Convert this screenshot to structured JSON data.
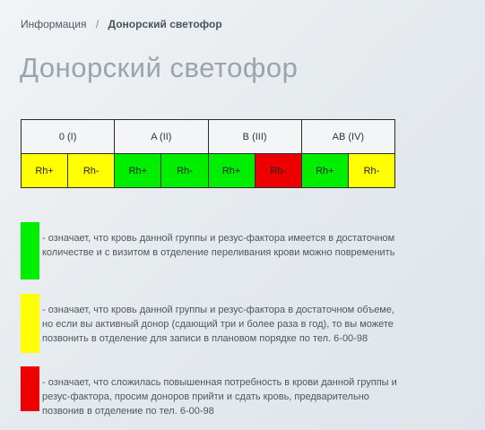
{
  "breadcrumb": {
    "home": "Информация",
    "separator": "/",
    "current": "Донорский светофор"
  },
  "page_title": "Донорский светофор",
  "colors": {
    "green": "#00ee00",
    "yellow": "#ffff00",
    "red": "#ee0000"
  },
  "table": {
    "groups": [
      {
        "label": "0 (I)",
        "cells": [
          {
            "label": "Rh+",
            "status": "yellow"
          },
          {
            "label": "Rh-",
            "status": "yellow"
          }
        ]
      },
      {
        "label": "A (II)",
        "cells": [
          {
            "label": "Rh+",
            "status": "green"
          },
          {
            "label": "Rh-",
            "status": "green"
          }
        ]
      },
      {
        "label": "B (III)",
        "cells": [
          {
            "label": "Rh+",
            "status": "green"
          },
          {
            "label": "Rh-",
            "status": "red"
          }
        ]
      },
      {
        "label": "AB (IV)",
        "cells": [
          {
            "label": "Rh+",
            "status": "green"
          },
          {
            "label": "Rh-",
            "status": "yellow"
          }
        ]
      }
    ]
  },
  "legend": [
    {
      "status": "green",
      "text": " - означает, что кровь данной группы и резус-фактора имеется в достаточном количестве и с визитом в отделение переливания крови можно повременить"
    },
    {
      "status": "yellow",
      "text": " - означает, что кровь данной группы и резус-фактора в достаточном объеме, но если вы активный донор (сдающий три и более раза в год), то вы можете позвонить в отделение для записи в плановом порядке по тел. 6-00-98"
    },
    {
      "status": "red",
      "text": " - означает, что сложилась повышенная потребность в крови данной группы и резус-фактора, просим доноров прийти и сдать кровь, предварительно позвонив в отделение по тел. 6-00-98"
    }
  ]
}
